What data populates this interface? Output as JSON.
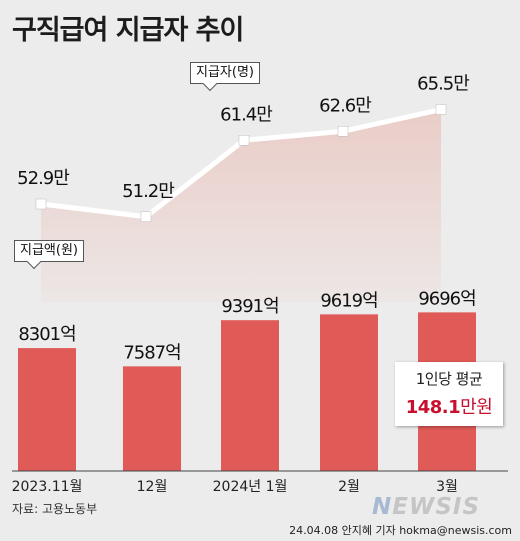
{
  "title": "구직급여 지급자 추이",
  "chart_data": [
    {
      "type": "bar",
      "categories": [
        "2023.11월",
        "12월",
        "2024년 1월",
        "2월",
        "3월"
      ],
      "values": [
        8301,
        7587,
        9391,
        9619,
        9696
      ],
      "value_labels": [
        "8301억",
        "7587억",
        "9391억",
        "9619억",
        "9696억"
      ],
      "series_label": "지급액(원)",
      "color": "#e05a57"
    },
    {
      "type": "line",
      "categories": [
        "2023.11월",
        "12월",
        "2024년 1월",
        "2월",
        "3월"
      ],
      "values": [
        52.9,
        51.2,
        61.4,
        62.6,
        65.5
      ],
      "value_labels": [
        "52.9만",
        "51.2만",
        "61.4만",
        "62.6만",
        "65.5만"
      ],
      "series_label": "지급자(명)",
      "color": "#ffffff",
      "area_color": "#eac9c3"
    }
  ],
  "average_box": {
    "label": "1인당 평균",
    "value": "148.1",
    "unit": "만원",
    "value_color": "#c8102e"
  },
  "source": "자료: 고용노동부",
  "credit": "24.04.08 안지혜 기자 hokma@newsis.com",
  "logo": {
    "mark": "N",
    "text": "EWSIS"
  }
}
